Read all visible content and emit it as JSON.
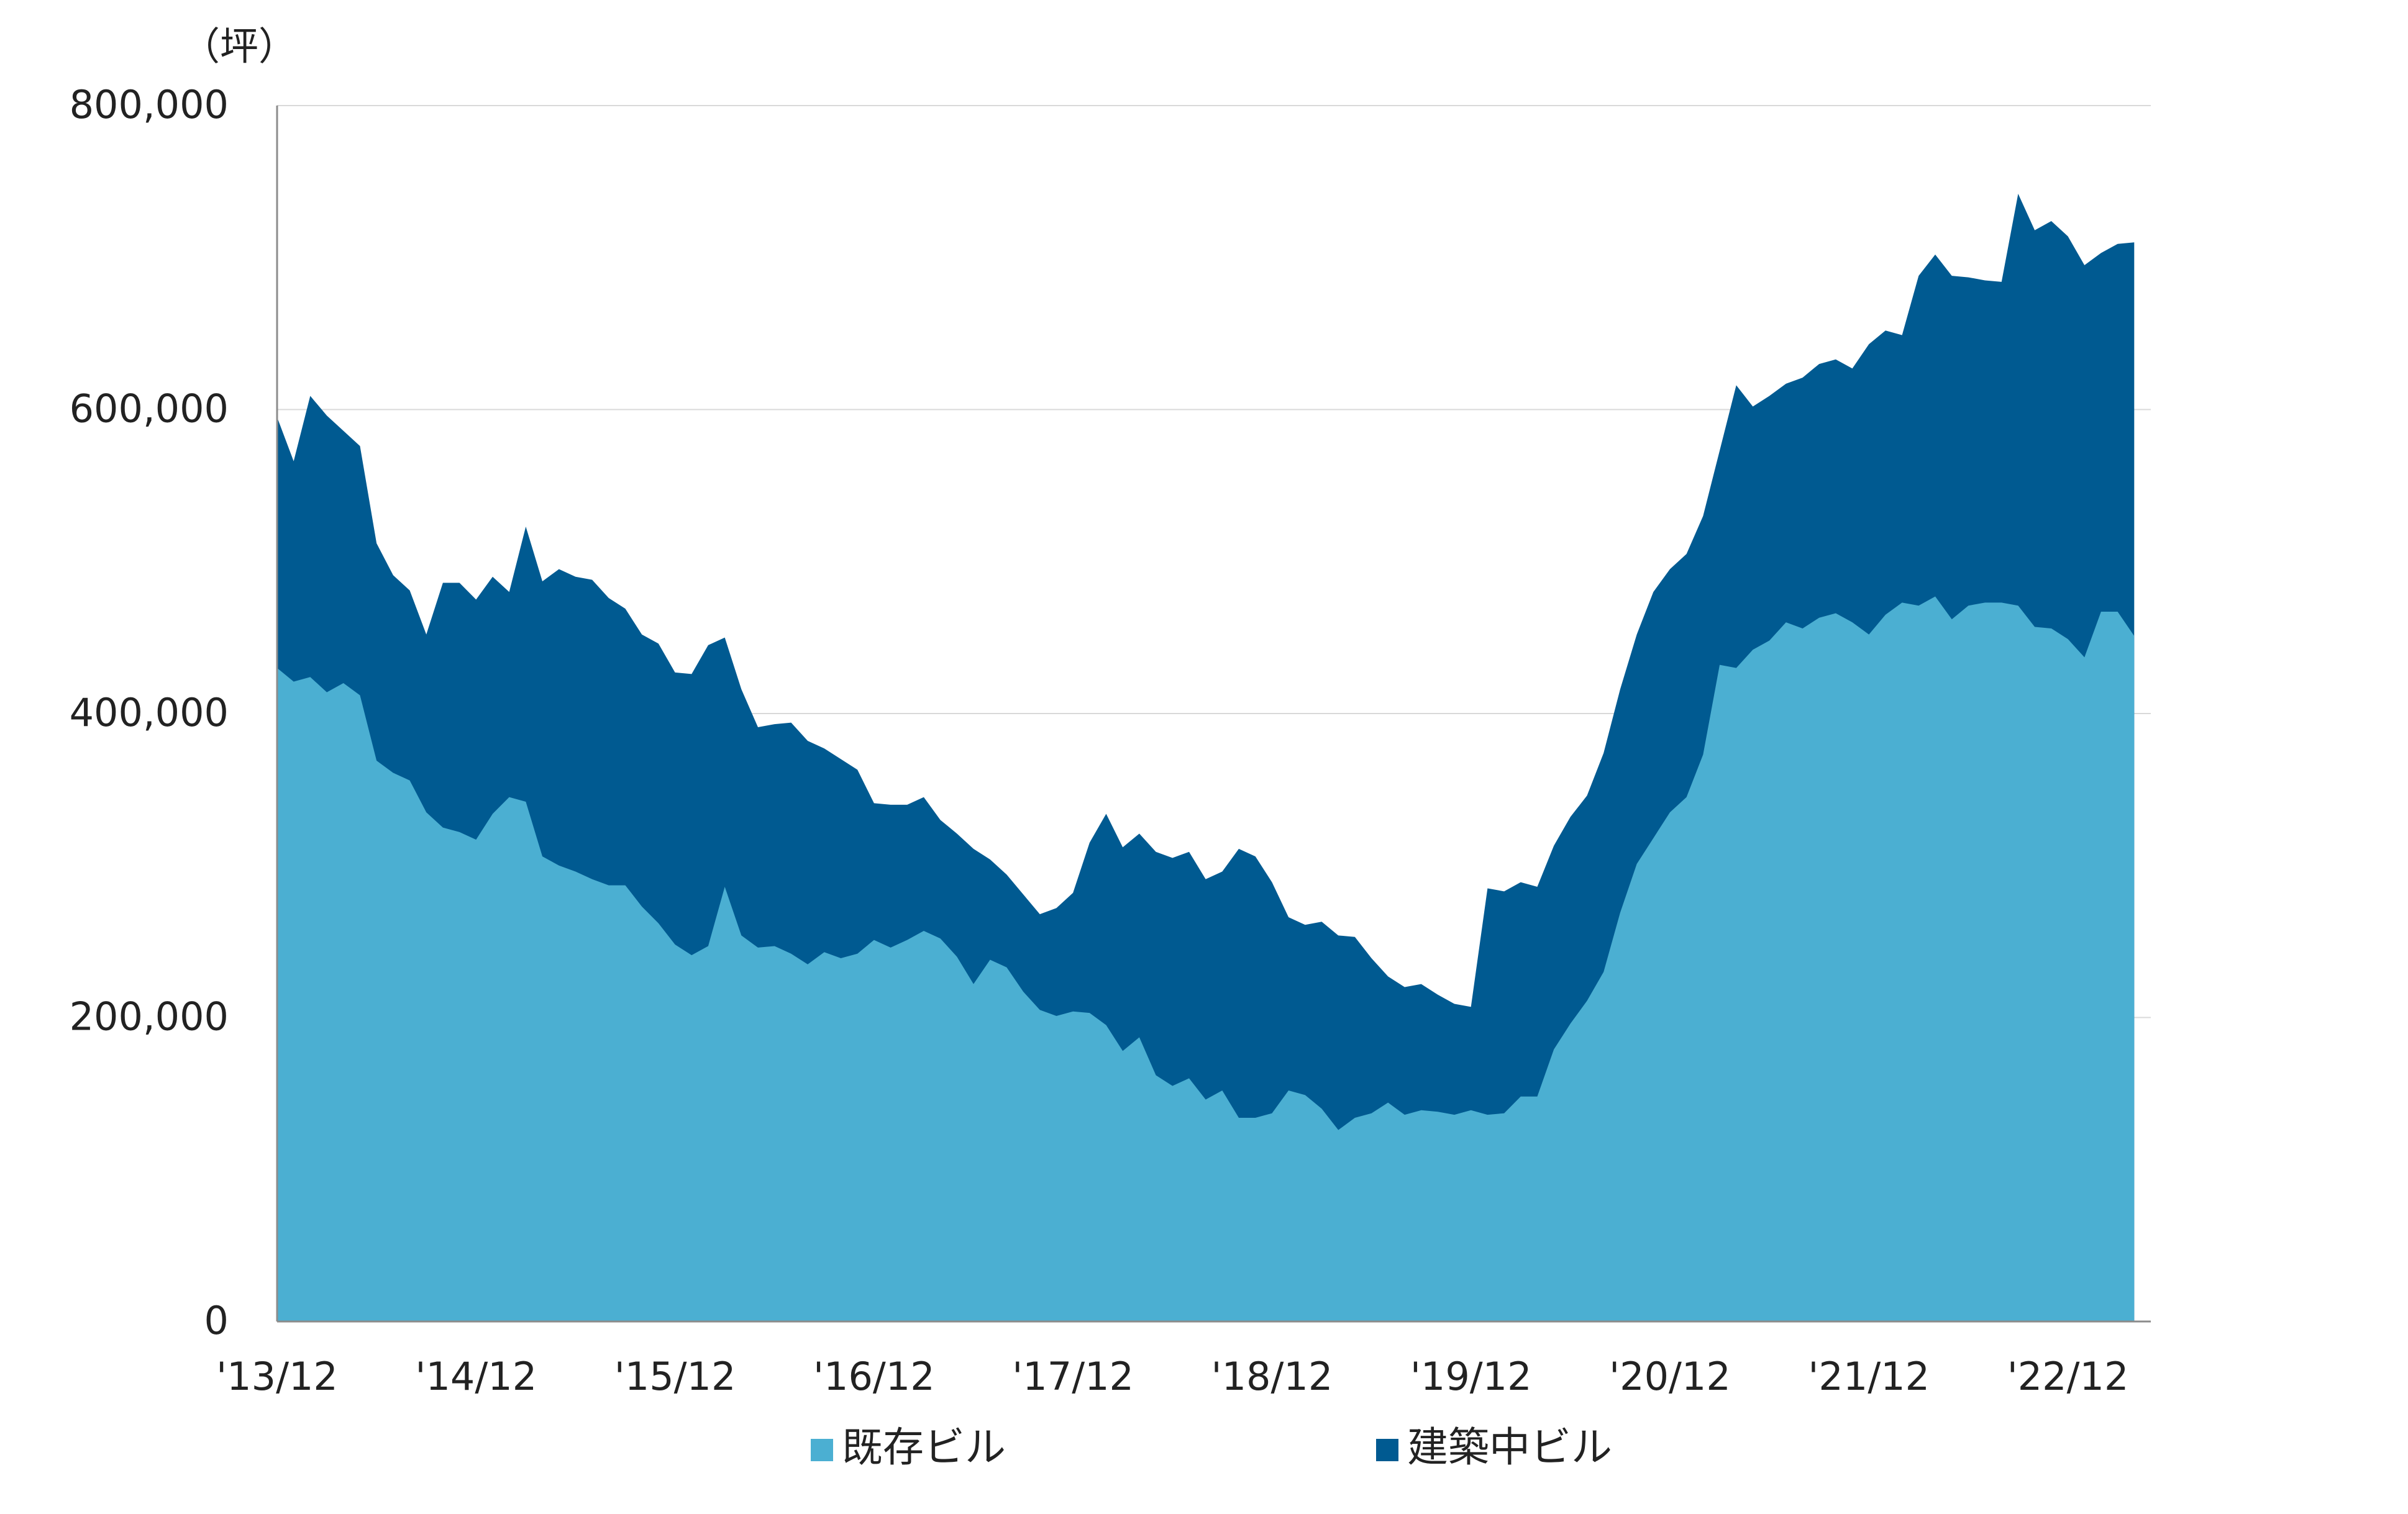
{
  "chart_data": {
    "type": "area",
    "stacked": true,
    "unit_label": "（坪）",
    "ylim": [
      0,
      800000
    ],
    "yticks": [
      0,
      200000,
      400000,
      600000,
      800000
    ],
    "ytick_labels": [
      "0",
      "200,000",
      "400,000",
      "600,000",
      "800,000"
    ],
    "x_start": "2013-12",
    "x_end": "2023-05",
    "x_ticks": [
      {
        "x": "2013-12",
        "label": "'13/12"
      },
      {
        "x": "2014-12",
        "label": "'14/12"
      },
      {
        "x": "2015-12",
        "label": "'15/12"
      },
      {
        "x": "2016-12",
        "label": "'16/12"
      },
      {
        "x": "2017-12",
        "label": "'17/12"
      },
      {
        "x": "2018-12",
        "label": "'18/12"
      },
      {
        "x": "2019-12",
        "label": "'19/12"
      },
      {
        "x": "2020-12",
        "label": "'20/12"
      },
      {
        "x": "2021-12",
        "label": "'21/12"
      },
      {
        "x": "2022-12",
        "label": "'22/12"
      }
    ],
    "grid": true,
    "legend_position": "bottom",
    "series": [
      {
        "name": "既存ビル",
        "color": "#4BAFD2",
        "values": [
          430000,
          421000,
          424000,
          414000,
          420000,
          412000,
          369000,
          361000,
          356000,
          335000,
          325000,
          322000,
          317000,
          334000,
          345000,
          342000,
          306000,
          300000,
          296000,
          291000,
          287000,
          287000,
          273000,
          262000,
          248000,
          241000,
          247000,
          286000,
          254000,
          246000,
          247000,
          242000,
          235000,
          243000,
          239000,
          242000,
          251000,
          246000,
          251000,
          257000,
          252000,
          240000,
          222000,
          238000,
          233000,
          217000,
          205000,
          201000,
          204000,
          203000,
          195000,
          178000,
          187000,
          162000,
          155000,
          160000,
          146000,
          152000,
          134000,
          134000,
          137000,
          152000,
          149000,
          140000,
          126000,
          134000,
          137000,
          144000,
          136000,
          139000,
          138000,
          136000,
          139000,
          136000,
          137000,
          148000,
          148000,
          179000,
          196000,
          211000,
          230000,
          269000,
          301000,
          318000,
          335000,
          345000,
          373000,
          432000,
          430000,
          442000,
          448000,
          460000,
          456000,
          463000,
          466000,
          460000,
          452000,
          465000,
          473000,
          471000,
          477000,
          462000,
          471000,
          473000,
          473000,
          471000,
          457000,
          456000,
          449000,
          437000,
          467000,
          467000,
          451000
        ],
        "stack_totals_note": ""
      },
      {
        "name": "建築中ビル",
        "color": "#005A91",
        "totals": [
          595000,
          566000,
          609000,
          596000,
          586000,
          576000,
          512000,
          491000,
          481000,
          452000,
          486000,
          486000,
          475000,
          490000,
          480000,
          523000,
          487000,
          495000,
          490000,
          488000,
          476000,
          469000,
          452000,
          446000,
          427000,
          426000,
          445000,
          450000,
          416000,
          391000,
          393000,
          394000,
          382000,
          377000,
          370000,
          363000,
          341000,
          340000,
          340000,
          345000,
          330000,
          321000,
          311000,
          304000,
          294000,
          281000,
          268000,
          272000,
          282000,
          315000,
          334000,
          312000,
          321000,
          309000,
          305000,
          309000,
          291000,
          296000,
          311000,
          306000,
          289000,
          266000,
          261000,
          263000,
          254000,
          253000,
          239000,
          227000,
          220000,
          222000,
          215000,
          209000,
          207000,
          285000,
          283000,
          289000,
          286000,
          313000,
          332000,
          346000,
          374000,
          416000,
          452000,
          480000,
          495000,
          505000,
          530000,
          573000,
          616000,
          602000,
          609000,
          617000,
          621000,
          630000,
          633000,
          627000,
          643000,
          652000,
          649000,
          688000,
          702000,
          688000,
          687000,
          685000,
          684000,
          742000,
          718000,
          724000,
          714000,
          695000,
          703000,
          709000,
          710000
        ]
      }
    ]
  }
}
